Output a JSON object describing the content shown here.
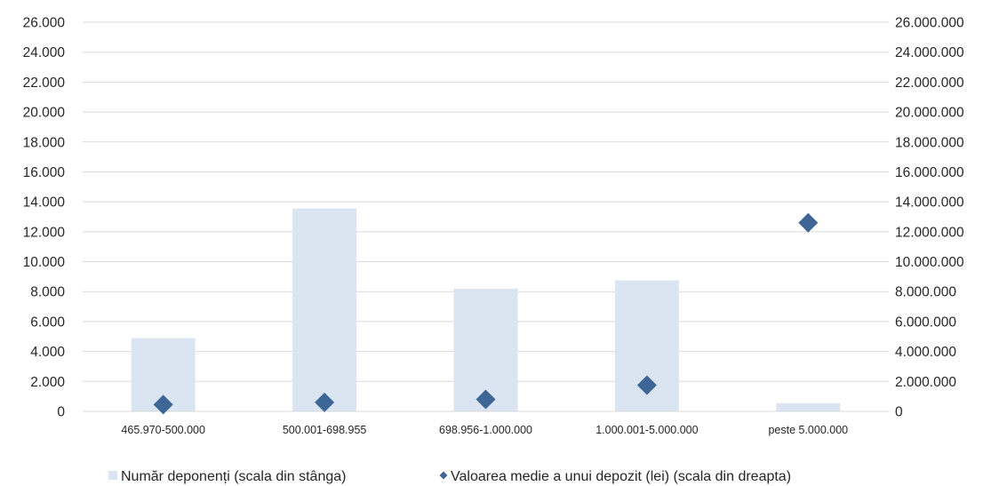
{
  "chart_data": {
    "type": "bar",
    "categories": [
      "465.970-500.000",
      "500.001-698.955",
      "698.956-1.000.000",
      "1.000.001-5.000.000",
      "peste 5.000.000"
    ],
    "series": [
      {
        "name": "Număr deponenți (scala din stânga)",
        "type": "bar",
        "axis": "left",
        "color": "#dbe5f1",
        "values": [
          4900,
          13550,
          8200,
          8750,
          550
        ]
      },
      {
        "name": "Valoarea medie a unui depozit (lei) (scala din dreapta)",
        "type": "scatter",
        "axis": "right",
        "color": "#3d6596",
        "values": [
          450000,
          600000,
          800000,
          1750000,
          12600000
        ]
      }
    ],
    "y_left": {
      "ylim": [
        0,
        26000
      ],
      "ticks": [
        "0",
        "2.000",
        "4.000",
        "6.000",
        "8.000",
        "10.000",
        "12.000",
        "14.000",
        "16.000",
        "18.000",
        "20.000",
        "22.000",
        "24.000",
        "26.000"
      ]
    },
    "y_right": {
      "ylim": [
        0,
        26000000
      ],
      "ticks": [
        "0",
        "2.000.000",
        "4.000.000",
        "6.000.000",
        "8.000.000",
        "10.000.000",
        "12.000.000",
        "14.000.000",
        "16.000.000",
        "18.000.000",
        "20.000.000",
        "22.000.000",
        "24.000.000",
        "26.000.000"
      ]
    },
    "grid": true,
    "legend_position": "bottom-center"
  }
}
